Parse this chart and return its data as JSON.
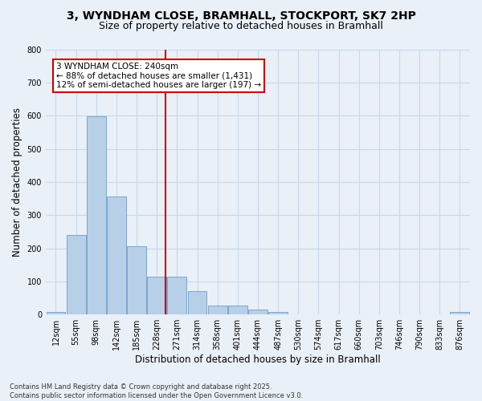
{
  "title_line1": "3, WYNDHAM CLOSE, BRAMHALL, STOCKPORT, SK7 2HP",
  "title_line2": "Size of property relative to detached houses in Bramhall",
  "xlabel": "Distribution of detached houses by size in Bramhall",
  "ylabel": "Number of detached properties",
  "bin_labels": [
    "12sqm",
    "55sqm",
    "98sqm",
    "142sqm",
    "185sqm",
    "228sqm",
    "271sqm",
    "314sqm",
    "358sqm",
    "401sqm",
    "444sqm",
    "487sqm",
    "530sqm",
    "574sqm",
    "617sqm",
    "660sqm",
    "703sqm",
    "746sqm",
    "790sqm",
    "833sqm",
    "876sqm"
  ],
  "bar_values": [
    8,
    240,
    598,
    355,
    207,
    115,
    115,
    70,
    28,
    28,
    14,
    7,
    0,
    0,
    0,
    0,
    0,
    0,
    0,
    0,
    7
  ],
  "bar_color": "#b8cfe8",
  "bar_edge_color": "#5a8fc0",
  "grid_color": "#c8d8e8",
  "background_color": "#eaf0f8",
  "vline_x": 5.42,
  "vline_color": "#cc0000",
  "annotation_text": "3 WYNDHAM CLOSE: 240sqm\n← 88% of detached houses are smaller (1,431)\n12% of semi-detached houses are larger (197) →",
  "annotation_box_color": "#ffffff",
  "annotation_box_edge": "#cc0000",
  "ylim": [
    0,
    800
  ],
  "yticks": [
    0,
    100,
    200,
    300,
    400,
    500,
    600,
    700,
    800
  ],
  "footnote": "Contains HM Land Registry data © Crown copyright and database right 2025.\nContains public sector information licensed under the Open Government Licence v3.0.",
  "title_fontsize": 10,
  "subtitle_fontsize": 9,
  "tick_fontsize": 7,
  "ylabel_fontsize": 8.5,
  "xlabel_fontsize": 8.5,
  "annotation_fontsize": 7.5,
  "footnote_fontsize": 6
}
